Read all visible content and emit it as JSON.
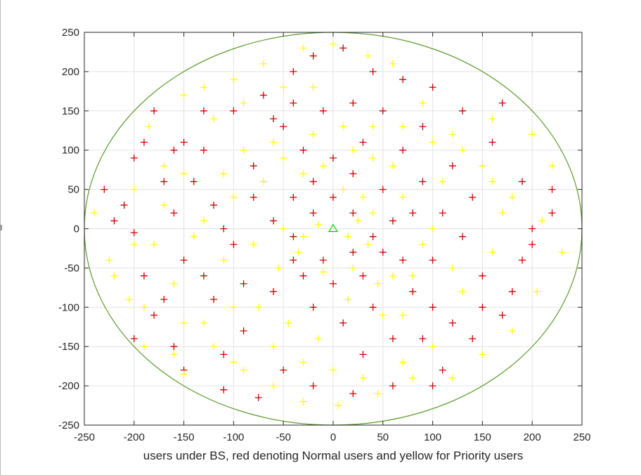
{
  "chart_data": {
    "type": "scatter",
    "title": "",
    "xlabel": "users under BS, red denoting Normal users and yellow for Priority users",
    "ylabel": "",
    "xlim": [
      -250,
      250
    ],
    "ylim": [
      -250,
      250
    ],
    "x_ticks": [
      "-250",
      "-200",
      "-150",
      "-100",
      "-50",
      "0",
      "50",
      "100",
      "150",
      "200",
      "250"
    ],
    "y_ticks": [
      "250",
      "200",
      "150",
      "100",
      "50",
      "0",
      "-50",
      "-100",
      "-150",
      "-200",
      "-250"
    ],
    "grid": true,
    "cell_boundary": {
      "shape": "circle",
      "center": [
        0,
        0
      ],
      "radius": 250,
      "color": "#5c9a2c"
    },
    "base_station": {
      "x": 0,
      "y": 0,
      "marker": "triangle",
      "color": "#00cc00"
    },
    "colors": {
      "normal": "#cc0000",
      "priority": "#ffff00"
    },
    "series": [
      {
        "marker": "+",
        "color": "#cc0000",
        "points": [
          [
            -230,
            50
          ],
          [
            -210,
            30
          ],
          [
            -200,
            -5
          ],
          [
            -190,
            -60
          ],
          [
            -180,
            -110
          ],
          [
            -160,
            -150
          ],
          [
            -170,
            60
          ],
          [
            -150,
            110
          ],
          [
            -130,
            150
          ],
          [
            -110,
            -160
          ],
          [
            -110,
            -205
          ],
          [
            -75,
            -215
          ],
          [
            -80,
            80
          ],
          [
            -60,
            140
          ],
          [
            -40,
            200
          ],
          [
            -20,
            220
          ],
          [
            10,
            230
          ],
          [
            40,
            200
          ],
          [
            70,
            190
          ],
          [
            100,
            180
          ],
          [
            130,
            150
          ],
          [
            160,
            110
          ],
          [
            190,
            60
          ],
          [
            200,
            0
          ],
          [
            190,
            -40
          ],
          [
            170,
            -110
          ],
          [
            140,
            -140
          ],
          [
            110,
            -180
          ],
          [
            60,
            -200
          ],
          [
            20,
            -210
          ],
          [
            -20,
            -200
          ],
          [
            -50,
            -180
          ],
          [
            -90,
            -130
          ],
          [
            -120,
            -90
          ],
          [
            -150,
            -40
          ],
          [
            -160,
            20
          ],
          [
            -140,
            60
          ],
          [
            -120,
            30
          ],
          [
            -100,
            -20
          ],
          [
            -90,
            -70
          ],
          [
            -60,
            -80
          ],
          [
            -40,
            -40
          ],
          [
            -60,
            10
          ],
          [
            -40,
            40
          ],
          [
            -20,
            60
          ],
          [
            20,
            70
          ],
          [
            50,
            50
          ],
          [
            60,
            10
          ],
          [
            50,
            -30
          ],
          [
            30,
            -60
          ],
          [
            0,
            -70
          ],
          [
            -30,
            -60
          ],
          [
            -20,
            -100
          ],
          [
            10,
            -120
          ],
          [
            40,
            -100
          ],
          [
            80,
            -80
          ],
          [
            100,
            -40
          ],
          [
            110,
            20
          ],
          [
            90,
            60
          ],
          [
            70,
            100
          ],
          [
            30,
            110
          ],
          [
            0,
            90
          ],
          [
            -30,
            100
          ],
          [
            -50,
            130
          ],
          [
            -80,
            40
          ],
          [
            -110,
            0
          ],
          [
            -130,
            -60
          ],
          [
            -170,
            -90
          ],
          [
            -200,
            -140
          ],
          [
            -220,
            10
          ],
          [
            220,
            20
          ],
          [
            220,
            50
          ],
          [
            200,
            -20
          ],
          [
            180,
            -80
          ],
          [
            150,
            -60
          ],
          [
            130,
            -10
          ],
          [
            140,
            40
          ],
          [
            120,
            80
          ],
          [
            90,
            130
          ],
          [
            50,
            150
          ],
          [
            20,
            160
          ],
          [
            -10,
            150
          ],
          [
            -40,
            160
          ],
          [
            -70,
            170
          ],
          [
            -100,
            150
          ],
          [
            -130,
            100
          ],
          [
            -160,
            100
          ],
          [
            -190,
            110
          ],
          [
            -200,
            90
          ],
          [
            30,
            -160
          ],
          [
            60,
            -140
          ],
          [
            90,
            -140
          ],
          [
            120,
            -120
          ],
          [
            150,
            -100
          ],
          [
            100,
            -100
          ],
          [
            70,
            -40
          ],
          [
            40,
            -10
          ],
          [
            0,
            40
          ],
          [
            -20,
            20
          ],
          [
            -40,
            -10
          ],
          [
            -10,
            -40
          ],
          [
            20,
            -30
          ],
          [
            80,
            20
          ],
          [
            20,
            20
          ],
          [
            170,
            160
          ],
          [
            100,
            -200
          ],
          [
            -150,
            -180
          ],
          [
            -180,
            150
          ]
        ]
      },
      {
        "marker": "+",
        "color": "#ffff00",
        "points": [
          [
            -240,
            20
          ],
          [
            -225,
            -40
          ],
          [
            -205,
            -90
          ],
          [
            -190,
            -150
          ],
          [
            -150,
            -185
          ],
          [
            -200,
            50
          ],
          [
            -185,
            130
          ],
          [
            -150,
            170
          ],
          [
            -120,
            140
          ],
          [
            -100,
            190
          ],
          [
            -70,
            210
          ],
          [
            -30,
            230
          ],
          [
            0,
            235
          ],
          [
            35,
            220
          ],
          [
            60,
            210
          ],
          [
            90,
            160
          ],
          [
            120,
            120
          ],
          [
            150,
            80
          ],
          [
            180,
            40
          ],
          [
            210,
            10
          ],
          [
            230,
            -30
          ],
          [
            205,
            -80
          ],
          [
            180,
            -130
          ],
          [
            150,
            -160
          ],
          [
            120,
            -190
          ],
          [
            80,
            -190
          ],
          [
            45,
            -210
          ],
          [
            5,
            -225
          ],
          [
            -30,
            -220
          ],
          [
            -60,
            -200
          ],
          [
            -100,
            -170
          ],
          [
            -130,
            -120
          ],
          [
            -160,
            -70
          ],
          [
            -180,
            -20
          ],
          [
            -170,
            30
          ],
          [
            -150,
            70
          ],
          [
            -130,
            10
          ],
          [
            -110,
            -40
          ],
          [
            -100,
            40
          ],
          [
            -80,
            -20
          ],
          [
            -70,
            60
          ],
          [
            -50,
            90
          ],
          [
            -30,
            70
          ],
          [
            -10,
            80
          ],
          [
            10,
            50
          ],
          [
            30,
            40
          ],
          [
            40,
            20
          ],
          [
            35,
            -20
          ],
          [
            20,
            -50
          ],
          [
            -10,
            -55
          ],
          [
            -35,
            -30
          ],
          [
            -50,
            0
          ],
          [
            -55,
            -50
          ],
          [
            -75,
            -100
          ],
          [
            -45,
            -120
          ],
          [
            -15,
            -140
          ],
          [
            15,
            -90
          ],
          [
            45,
            -70
          ],
          [
            70,
            -110
          ],
          [
            60,
            -60
          ],
          [
            90,
            -20
          ],
          [
            100,
            0
          ],
          [
            70,
            40
          ],
          [
            60,
            80
          ],
          [
            40,
            90
          ],
          [
            20,
            100
          ],
          [
            -20,
            120
          ],
          [
            -60,
            110
          ],
          [
            -90,
            100
          ],
          [
            -110,
            70
          ],
          [
            -140,
            -10
          ],
          [
            -150,
            -120
          ],
          [
            -120,
            -150
          ],
          [
            -90,
            -180
          ],
          [
            -60,
            -150
          ],
          [
            -30,
            -170
          ],
          [
            0,
            -180
          ],
          [
            30,
            -190
          ],
          [
            70,
            -170
          ],
          [
            100,
            -150
          ],
          [
            130,
            -80
          ],
          [
            160,
            -30
          ],
          [
            170,
            20
          ],
          [
            160,
            60
          ],
          [
            130,
            100
          ],
          [
            100,
            110
          ],
          [
            70,
            130
          ],
          [
            40,
            130
          ],
          [
            10,
            130
          ],
          [
            -20,
            180
          ],
          [
            -50,
            180
          ],
          [
            -90,
            160
          ],
          [
            -130,
            180
          ],
          [
            -170,
            80
          ],
          [
            -200,
            -20
          ],
          [
            -220,
            -60
          ],
          [
            160,
            140
          ],
          [
            200,
            120
          ],
          [
            220,
            80
          ],
          [
            110,
            60
          ],
          [
            120,
            -50
          ],
          [
            80,
            -60
          ],
          [
            -15,
            5
          ],
          [
            15,
            -10
          ],
          [
            25,
            10
          ],
          [
            -30,
            -10
          ],
          [
            50,
            -110
          ],
          [
            -160,
            -160
          ],
          [
            -190,
            -100
          ],
          [
            -100,
            -100
          ]
        ]
      }
    ]
  }
}
